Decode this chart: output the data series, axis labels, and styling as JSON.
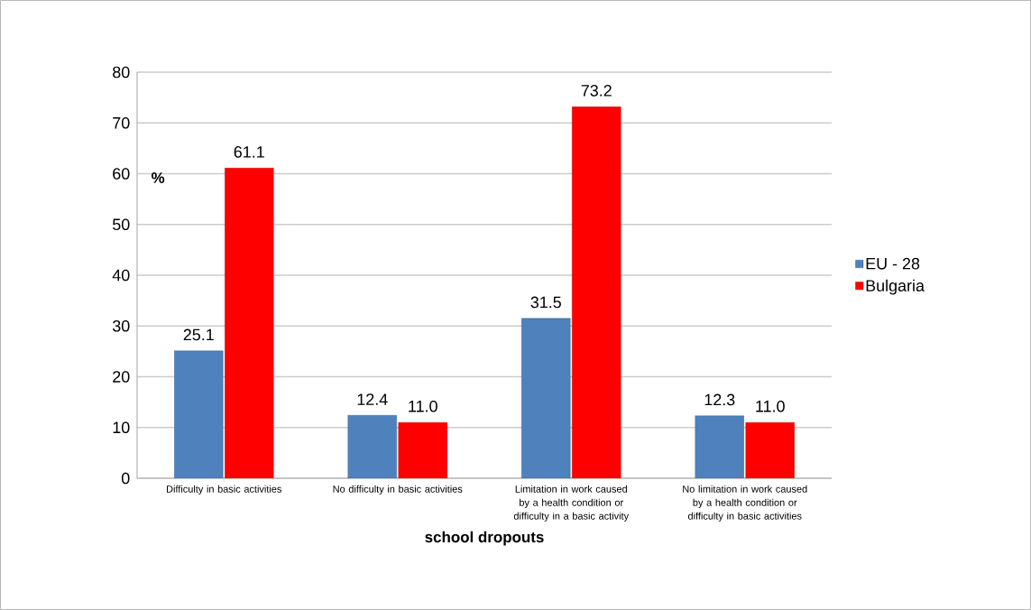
{
  "chart_data": {
    "type": "bar",
    "xlabel": "school dropouts",
    "ylabel": "%",
    "categories": [
      "Difficulty in basic activities",
      "No difficulty in basic activities",
      "Limitation in work caused by a health condition or difficulty in a basic activity",
      "No limitation in work caused by a health condition or difficulty in basic activities"
    ],
    "series": [
      {
        "name": "EU - 28",
        "color": "#4f81bd",
        "values": [
          25.1,
          12.4,
          31.5,
          12.3
        ],
        "value_labels": [
          "25.1",
          "12.4",
          "31.5",
          "12.3"
        ]
      },
      {
        "name": "Bulgaria",
        "color": "#ff0000",
        "values": [
          61.1,
          11.0,
          73.2,
          11.0
        ],
        "value_labels": [
          "61.1",
          "11.0",
          "73.2",
          "11.0"
        ]
      }
    ],
    "ylim": [
      0,
      80
    ],
    "yticks": [
      0,
      10,
      20,
      30,
      40,
      50,
      60,
      70,
      80
    ],
    "grid": "y",
    "legend": "right"
  }
}
